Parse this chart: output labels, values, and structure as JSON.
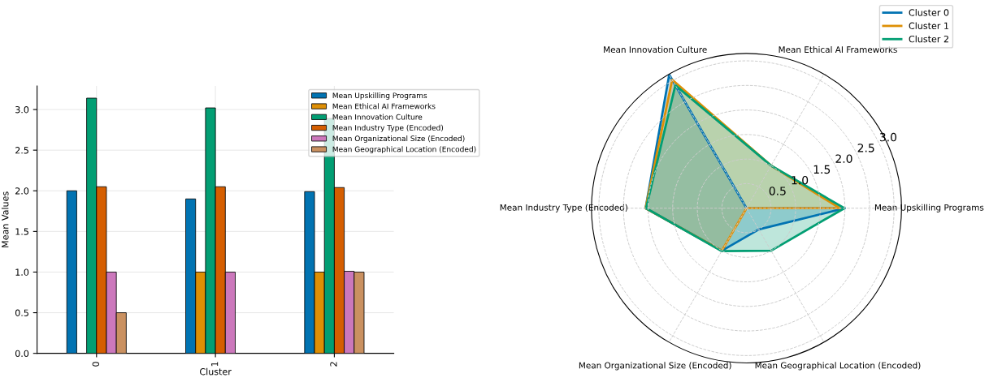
{
  "chart_data": [
    {
      "type": "bar",
      "xlabel": "Cluster",
      "ylabel": "Mean Values",
      "categories": [
        "0",
        "1",
        "2"
      ],
      "ylim": [
        0,
        3.29
      ],
      "yticks": [
        {
          "value": 0,
          "label": "0.0"
        },
        0.5,
        {
          "value": 1,
          "label": "1.0"
        },
        1.5,
        {
          "value": 2,
          "label": "2.0"
        },
        2.5,
        {
          "value": 3,
          "label": "3.0"
        }
      ],
      "grid": true,
      "legend": "top right",
      "series": [
        {
          "name": "Mean Upskilling Programs",
          "color": "#0173b2",
          "values": [
            2.0,
            1.9,
            1.99
          ]
        },
        {
          "name": "Mean Ethical AI Frameworks",
          "color": "#de8f05",
          "values": [
            0,
            1.0,
            1.0
          ]
        },
        {
          "name": "Mean Innovation Culture",
          "color": "#029e73",
          "values": [
            3.14,
            3.02,
            2.89
          ]
        },
        {
          "name": "Mean Industry Type (Encoded)",
          "color": "#d55e00",
          "values": [
            2.05,
            2.05,
            2.04
          ]
        },
        {
          "name": "Mean Organizational Size (Encoded)",
          "color": "#cc78bc",
          "values": [
            1.0,
            1.0,
            1.01
          ]
        },
        {
          "name": "Mean Geographical Location (Encoded)",
          "color": "#ca9161",
          "values": [
            0.5,
            0,
            1.0
          ]
        }
      ]
    },
    {
      "type": "radar",
      "categories": [
        "Mean Ethical AI Frameworks",
        "Mean Upskilling Programs",
        "Mean Geographical Location (Encoded)",
        "Mean Organizational Size (Encoded)",
        "Mean Industry Type (Encoded)",
        "Mean Innovation Culture"
      ],
      "ylim": [
        0,
        3.15
      ],
      "yticks": [
        0.5,
        {
          "value": 1,
          "label": "1.0"
        },
        1.5,
        {
          "value": 2,
          "label": "2.0"
        },
        2.5,
        {
          "value": 3,
          "label": "3.0"
        }
      ],
      "grid": true,
      "legend": "top right",
      "series": [
        {
          "name": "Cluster 0",
          "color": "#0173b2",
          "values": [
            0,
            2.0,
            0.5,
            1.0,
            2.05,
            3.14
          ]
        },
        {
          "name": "Cluster 1",
          "color": "#de8f05",
          "values": [
            1.0,
            1.9,
            0,
            1.0,
            2.05,
            3.02
          ]
        },
        {
          "name": "Cluster 2",
          "color": "#029e73",
          "values": [
            1.0,
            1.99,
            1.0,
            1.01,
            2.04,
            2.89
          ]
        }
      ]
    }
  ]
}
